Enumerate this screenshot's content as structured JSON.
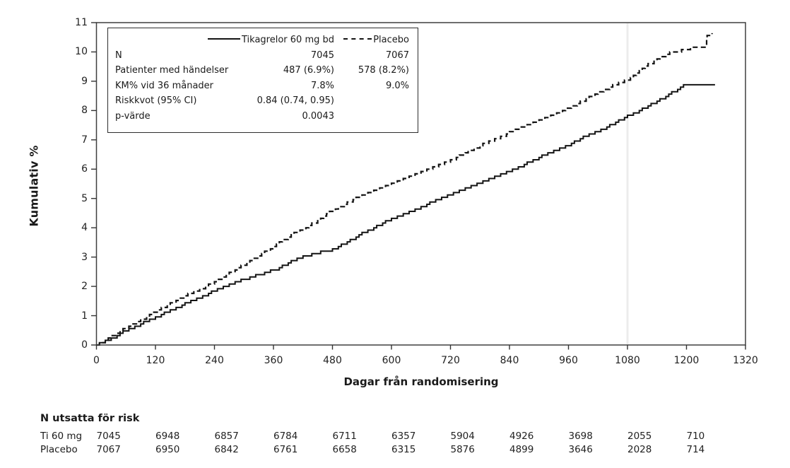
{
  "chart_data": {
    "type": "line",
    "subtype": "kaplan-meier-cumulative-step",
    "title": "",
    "x_axis": {
      "label": "Dagar från randomisering",
      "min": 0,
      "max": 1320,
      "ticks": [
        0,
        120,
        240,
        360,
        480,
        600,
        720,
        840,
        960,
        1080,
        1200,
        1320
      ]
    },
    "y_axis": {
      "label": "Kumulativ %",
      "min": 0,
      "max": 11,
      "ticks": [
        0,
        1,
        2,
        3,
        4,
        5,
        6,
        7,
        8,
        9,
        10,
        11
      ]
    },
    "reference_line_x": 1080,
    "grid": false,
    "legend_position": "top-left-box",
    "series": [
      {
        "name": "Tikagrelor 60 mg bd",
        "line_style": "solid",
        "color": "#141414",
        "points": [
          [
            0,
            0
          ],
          [
            30,
            0.22
          ],
          [
            60,
            0.5
          ],
          [
            90,
            0.72
          ],
          [
            120,
            0.95
          ],
          [
            150,
            1.18
          ],
          [
            180,
            1.4
          ],
          [
            210,
            1.62
          ],
          [
            240,
            1.85
          ],
          [
            270,
            2.05
          ],
          [
            300,
            2.25
          ],
          [
            330,
            2.4
          ],
          [
            360,
            2.55
          ],
          [
            390,
            2.8
          ],
          [
            420,
            3.0
          ],
          [
            450,
            3.15
          ],
          [
            480,
            3.25
          ],
          [
            510,
            3.5
          ],
          [
            540,
            3.8
          ],
          [
            570,
            4.05
          ],
          [
            600,
            4.3
          ],
          [
            630,
            4.5
          ],
          [
            660,
            4.7
          ],
          [
            690,
            4.95
          ],
          [
            720,
            5.15
          ],
          [
            750,
            5.35
          ],
          [
            780,
            5.55
          ],
          [
            810,
            5.75
          ],
          [
            840,
            5.95
          ],
          [
            870,
            6.15
          ],
          [
            900,
            6.4
          ],
          [
            930,
            6.6
          ],
          [
            960,
            6.8
          ],
          [
            990,
            7.1
          ],
          [
            1020,
            7.3
          ],
          [
            1050,
            7.55
          ],
          [
            1080,
            7.8
          ],
          [
            1110,
            8.05
          ],
          [
            1140,
            8.3
          ],
          [
            1170,
            8.6
          ],
          [
            1195,
            8.88
          ],
          [
            1258,
            8.88
          ]
        ]
      },
      {
        "name": "Placebo",
        "line_style": "dashed",
        "color": "#141414",
        "points": [
          [
            0,
            0
          ],
          [
            30,
            0.28
          ],
          [
            60,
            0.58
          ],
          [
            90,
            0.85
          ],
          [
            120,
            1.15
          ],
          [
            150,
            1.42
          ],
          [
            180,
            1.68
          ],
          [
            210,
            1.9
          ],
          [
            240,
            2.15
          ],
          [
            270,
            2.45
          ],
          [
            300,
            2.75
          ],
          [
            330,
            3.05
          ],
          [
            360,
            3.35
          ],
          [
            390,
            3.7
          ],
          [
            420,
            3.95
          ],
          [
            450,
            4.25
          ],
          [
            480,
            4.6
          ],
          [
            510,
            4.85
          ],
          [
            540,
            5.1
          ],
          [
            570,
            5.3
          ],
          [
            600,
            5.5
          ],
          [
            630,
            5.7
          ],
          [
            660,
            5.9
          ],
          [
            690,
            6.1
          ],
          [
            720,
            6.3
          ],
          [
            750,
            6.55
          ],
          [
            780,
            6.8
          ],
          [
            810,
            7.0
          ],
          [
            840,
            7.25
          ],
          [
            870,
            7.45
          ],
          [
            900,
            7.65
          ],
          [
            930,
            7.85
          ],
          [
            960,
            8.1
          ],
          [
            990,
            8.35
          ],
          [
            1020,
            8.6
          ],
          [
            1050,
            8.85
          ],
          [
            1080,
            9.05
          ],
          [
            1110,
            9.45
          ],
          [
            1140,
            9.75
          ],
          [
            1160,
            9.95
          ],
          [
            1190,
            10.05
          ],
          [
            1215,
            10.15
          ],
          [
            1235,
            10.2
          ],
          [
            1242,
            10.55
          ],
          [
            1252,
            10.6
          ]
        ]
      }
    ]
  },
  "legend": {
    "header": {
      "series_a": "Tikagrelor 60 mg bd",
      "series_b": "Placebo"
    },
    "rows": [
      {
        "label": "N",
        "a": "7045",
        "b": "7067"
      },
      {
        "label": "Patienter med händelser",
        "a": "487 (6.9%)",
        "b": "578 (8.2%)"
      },
      {
        "label": "KM% vid 36 månader",
        "a": "7.8%",
        "b": "9.0%"
      },
      {
        "label": "Riskkvot (95% CI)",
        "a": "0.84 (0.74, 0.95)",
        "b": ""
      },
      {
        "label": "p-värde",
        "a": "0.0043",
        "b": ""
      }
    ]
  },
  "risk_table": {
    "title": "N utsatta för risk",
    "time_points": [
      0,
      120,
      240,
      360,
      480,
      600,
      720,
      840,
      960,
      1080,
      1200
    ],
    "rows": [
      {
        "label": "Ti 60 mg",
        "values": [
          "7045",
          "6948",
          "6857",
          "6784",
          "6711",
          "6357",
          "5904",
          "4926",
          "3698",
          "2055",
          "710"
        ]
      },
      {
        "label": "Placebo",
        "values": [
          "7067",
          "6950",
          "6842",
          "6761",
          "6658",
          "6315",
          "5876",
          "4899",
          "3646",
          "2028",
          "714"
        ]
      }
    ]
  },
  "colors": {
    "curve": "#141414",
    "axis": "#3f3f3f",
    "tick": "#333333",
    "reference_line": "#ececec",
    "text": "#1a1a1a",
    "background": "#ffffff"
  }
}
